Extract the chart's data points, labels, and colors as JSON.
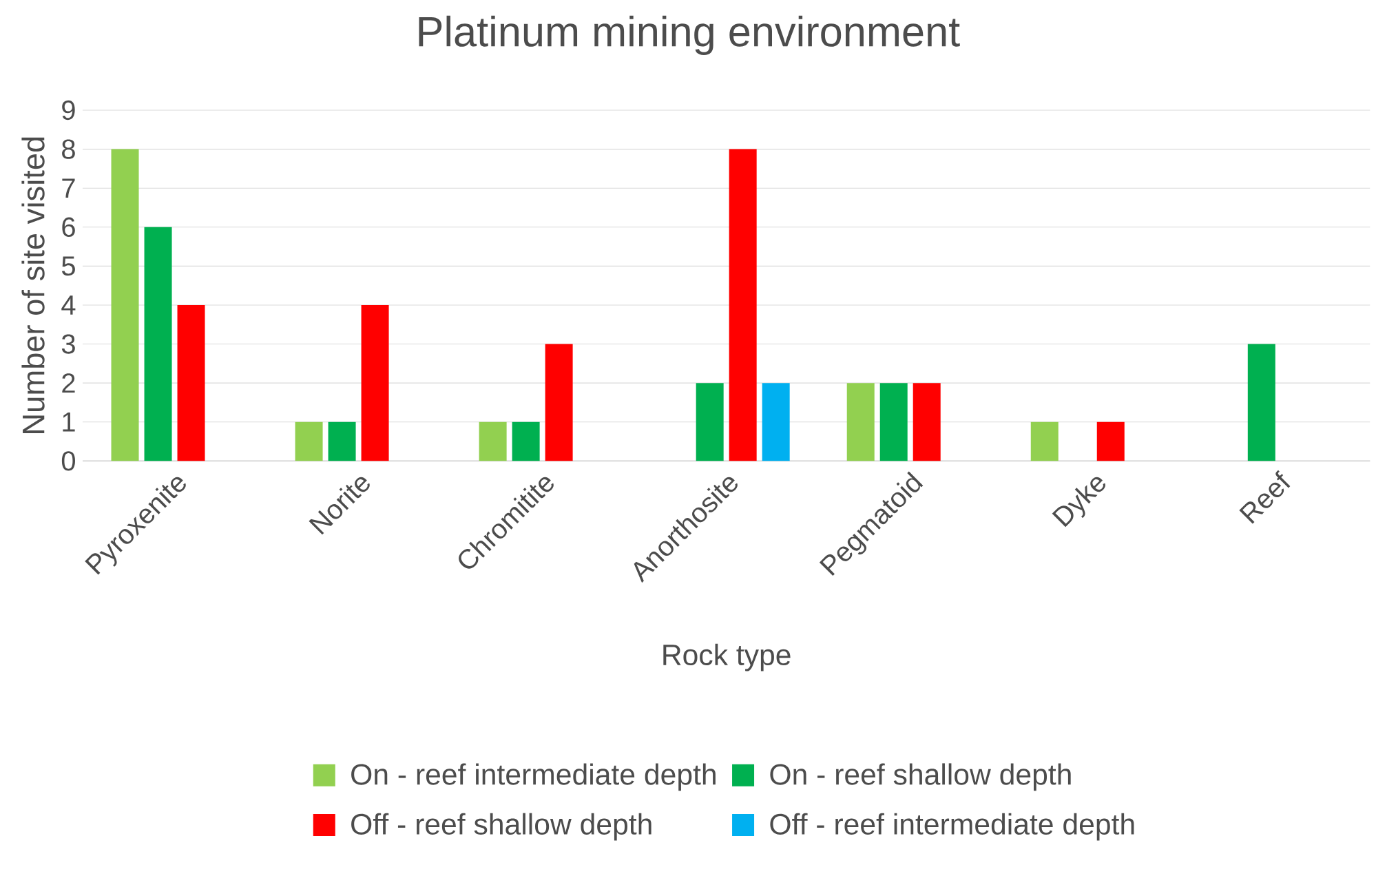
{
  "chart_data": {
    "type": "bar",
    "title": "Platinum mining environment",
    "xlabel": "Rock type",
    "ylabel": "Number of site visited",
    "categories": [
      "Pyroxenite",
      "Norite",
      "Chromitite",
      "Anorthosite",
      "Pegmatoid",
      "Dyke",
      "Reef"
    ],
    "series": [
      {
        "name": "On - reef intermediate depth",
        "color": "#92d050",
        "values": [
          8,
          1,
          1,
          null,
          2,
          1,
          null
        ]
      },
      {
        "name": "On - reef shallow depth",
        "color": "#00b050",
        "values": [
          6,
          1,
          1,
          2,
          2,
          null,
          3
        ]
      },
      {
        "name": "Off - reef shallow depth",
        "color": "#ff0000",
        "values": [
          4,
          4,
          3,
          8,
          2,
          1,
          null
        ]
      },
      {
        "name": "Off - reef intermediate depth",
        "color": "#00b0f0",
        "values": [
          null,
          null,
          null,
          2,
          null,
          null,
          null
        ]
      }
    ],
    "ylim": [
      0,
      9
    ],
    "yticks": [
      0,
      1,
      2,
      3,
      4,
      5,
      6,
      7,
      8,
      9
    ],
    "grid": "y",
    "legend": "bottom"
  }
}
